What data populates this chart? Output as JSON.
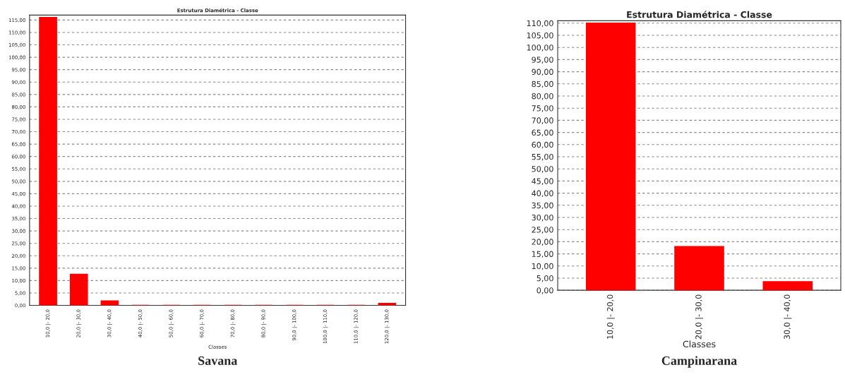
{
  "chart_data": [
    {
      "type": "bar",
      "title": "Estrutura Diamétrica - Classe",
      "xlabel": "Classes",
      "annotations": [
        "Savana"
      ],
      "categories": [
        "10,0 |- 20,0",
        "20,0 |- 30,0",
        "30,0 |- 40,0",
        "40,0 |- 50,0",
        "50,0 |- 60,0",
        "60,0 |- 70,0",
        "70,0 |- 80,0",
        "80,0 |- 90,0",
        "90,0 |- 100,0",
        "100,0 |- 110,0",
        "110,0 |- 120,0",
        "120,0 |- 130,0"
      ],
      "values": [
        116,
        12.5,
        1.8,
        0,
        0,
        0,
        0,
        0,
        0,
        0,
        0,
        0.8
      ],
      "color": "#ff0000",
      "ylim": [
        0,
        117
      ],
      "yticks": [
        {
          "value": 0,
          "label": "0,00"
        },
        {
          "value": 5,
          "label": "5,00"
        },
        {
          "value": 10,
          "label": "10,00"
        },
        {
          "value": 15,
          "label": "15,00"
        },
        {
          "value": 20,
          "label": "20,00"
        },
        {
          "value": 25,
          "label": "25,00"
        },
        {
          "value": 30,
          "label": "30,00"
        },
        {
          "value": 35,
          "label": "35,00"
        },
        {
          "value": 40,
          "label": "40,00"
        },
        {
          "value": 45,
          "label": "45,00"
        },
        {
          "value": 50,
          "label": "50,00"
        },
        {
          "value": 55,
          "label": "55,00"
        },
        {
          "value": 60,
          "label": "60,00"
        },
        {
          "value": 65,
          "label": "65,00"
        },
        {
          "value": 70,
          "label": "70,00"
        },
        {
          "value": 75,
          "label": "75,00"
        },
        {
          "value": 80,
          "label": "80,00"
        },
        {
          "value": 85,
          "label": "85,00"
        },
        {
          "value": 90,
          "label": "90,00"
        },
        {
          "value": 95,
          "label": "95,00"
        },
        {
          "value": 100,
          "label": "100,00"
        },
        {
          "value": 105,
          "label": "105,00"
        },
        {
          "value": 110,
          "label": "110,00"
        },
        {
          "value": 115,
          "label": "115,00"
        }
      ],
      "grid": "y",
      "legend": false
    },
    {
      "type": "bar",
      "title": "Estrutura Diamétrica - Classe",
      "xlabel": "Classes",
      "annotations": [
        "Campinarana"
      ],
      "categories": [
        "10,0 |- 20,0",
        "20,0 |- 30,0",
        "30,0 |- 40,0"
      ],
      "values": [
        110,
        18,
        3.5
      ],
      "color": "#ff0000",
      "ylim": [
        0,
        111
      ],
      "yticks": [
        {
          "value": 0,
          "label": "0,00"
        },
        {
          "value": 5,
          "label": "5,00"
        },
        {
          "value": 10,
          "label": "10,00"
        },
        {
          "value": 15,
          "label": "15,00"
        },
        {
          "value": 20,
          "label": "20,00"
        },
        {
          "value": 25,
          "label": "25,00"
        },
        {
          "value": 30,
          "label": "30,00"
        },
        {
          "value": 35,
          "label": "35,00"
        },
        {
          "value": 40,
          "label": "40,00"
        },
        {
          "value": 45,
          "label": "45,00"
        },
        {
          "value": 50,
          "label": "50,00"
        },
        {
          "value": 55,
          "label": "55,00"
        },
        {
          "value": 60,
          "label": "60,00"
        },
        {
          "value": 65,
          "label": "65,00"
        },
        {
          "value": 70,
          "label": "70,00"
        },
        {
          "value": 75,
          "label": "75,00"
        },
        {
          "value": 80,
          "label": "80,00"
        },
        {
          "value": 85,
          "label": "85,00"
        },
        {
          "value": 90,
          "label": "90,00"
        },
        {
          "value": 95,
          "label": "95,00"
        },
        {
          "value": 100,
          "label": "100,00"
        },
        {
          "value": 105,
          "label": "105,00"
        },
        {
          "value": 110,
          "label": "110,00"
        }
      ],
      "grid": "y",
      "legend": false
    }
  ]
}
